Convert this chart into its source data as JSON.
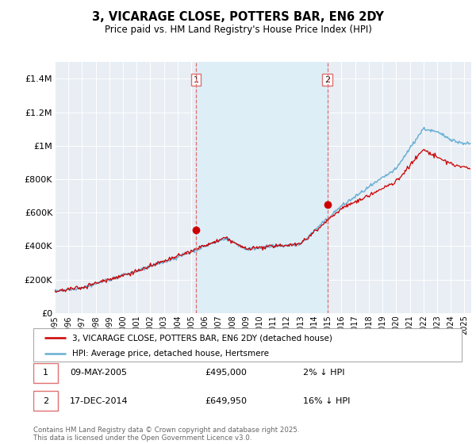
{
  "title": "3, VICARAGE CLOSE, POTTERS BAR, EN6 2DY",
  "subtitle": "Price paid vs. HM Land Registry's House Price Index (HPI)",
  "xlim_start": 1995.0,
  "xlim_end": 2025.5,
  "ylim": [
    0,
    1500000
  ],
  "yticks": [
    0,
    200000,
    400000,
    600000,
    800000,
    1000000,
    1200000,
    1400000
  ],
  "ytick_labels": [
    "£0",
    "£200K",
    "£400K",
    "£600K",
    "£800K",
    "£1M",
    "£1.2M",
    "£1.4M"
  ],
  "xticks": [
    1995,
    1996,
    1997,
    1998,
    1999,
    2000,
    2001,
    2002,
    2003,
    2004,
    2005,
    2006,
    2007,
    2008,
    2009,
    2010,
    2011,
    2012,
    2013,
    2014,
    2015,
    2016,
    2017,
    2018,
    2019,
    2020,
    2021,
    2022,
    2023,
    2024,
    2025
  ],
  "hpi_color": "#6ab0d4",
  "price_color": "#cc0000",
  "vline1_x": 2005.35,
  "vline2_x": 2014.96,
  "vline_color": "#e07070",
  "shade_color": "#ddeef7",
  "marker1_x": 2005.35,
  "marker1_y": 495000,
  "marker2_x": 2014.96,
  "marker2_y": 649950,
  "legend_price_label": "3, VICARAGE CLOSE, POTTERS BAR, EN6 2DY (detached house)",
  "legend_hpi_label": "HPI: Average price, detached house, Hertsmere",
  "footer": "Contains HM Land Registry data © Crown copyright and database right 2025.\nThis data is licensed under the Open Government Licence v3.0.",
  "background_color": "#e8eef4"
}
